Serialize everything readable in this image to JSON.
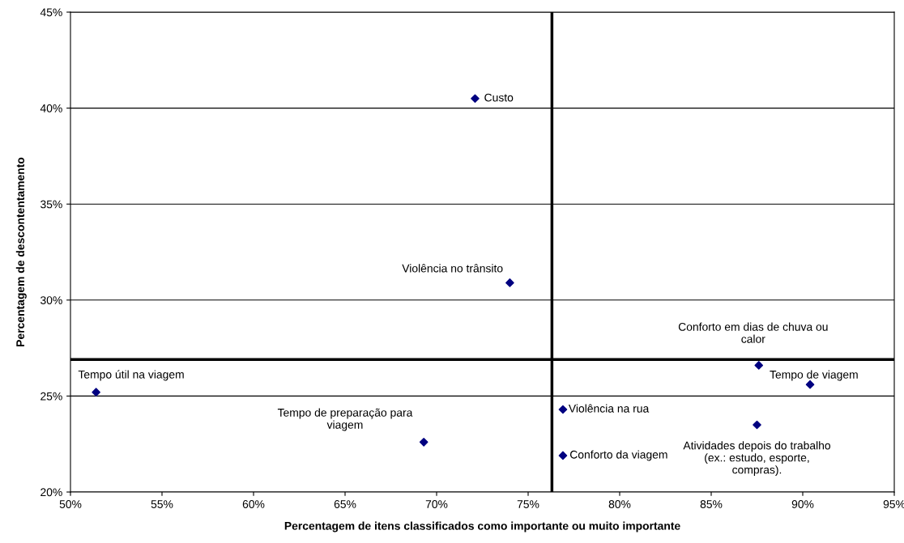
{
  "chart_data": {
    "type": "scatter",
    "xlabel": "Percentagem de itens classificados como importante ou muito importante",
    "ylabel": "Percentagem de descontentamento",
    "series": [
      {
        "color": "#000080",
        "x": [
          72.1,
          74.0,
          51.4,
          69.3,
          76.9,
          76.9,
          87.6,
          90.4,
          87.5
        ],
        "values": [
          40.5,
          30.9,
          25.2,
          22.6,
          24.3,
          21.9,
          26.6,
          25.6,
          23.5
        ]
      }
    ],
    "marker": "diamond",
    "annotations": [
      {
        "text": "Custo",
        "x": 72.1,
        "y": 40.5
      },
      {
        "text": "Violência no trânsito",
        "x": 74.0,
        "y": 30.9
      },
      {
        "text": "Tempo útil na viagem",
        "x": 51.4,
        "y": 25.2
      },
      {
        "text": "Tempo de preparação para\nviagem",
        "x": 69.3,
        "y": 22.6
      },
      {
        "text": "Violência na rua",
        "x": 76.9,
        "y": 24.3
      },
      {
        "text": "Conforto da viagem",
        "x": 76.9,
        "y": 21.9
      },
      {
        "text": "Conforto em dias de chuva ou\ncalor",
        "x": 87.6,
        "y": 26.6
      },
      {
        "text": "Tempo de viagem",
        "x": 90.4,
        "y": 25.6
      },
      {
        "text": "Atividades depois do trabalho\n(ex.: estudo, esporte,\ncompras).",
        "x": 87.5,
        "y": 23.5
      }
    ],
    "ref_lines": [
      {
        "axis": "x",
        "value": 76.3,
        "color": "#000000"
      },
      {
        "axis": "y",
        "value": 26.9,
        "color": "#000000"
      }
    ],
    "xlim": [
      50,
      95
    ],
    "xticks": [
      {
        "value": 50,
        "label": "50%"
      },
      {
        "value": 55,
        "label": "55%"
      },
      {
        "value": 60,
        "label": "60%"
      },
      {
        "value": 65,
        "label": "65%"
      },
      {
        "value": 70,
        "label": "70%"
      },
      {
        "value": 75,
        "label": "75%"
      },
      {
        "value": 80,
        "label": "80%"
      },
      {
        "value": 85,
        "label": "85%"
      },
      {
        "value": 90,
        "label": "90%"
      },
      {
        "value": 95,
        "label": "95%"
      }
    ],
    "ylim": [
      20,
      45
    ],
    "yticks": [
      {
        "value": 20,
        "label": "20%"
      },
      {
        "value": 25,
        "label": "25%"
      },
      {
        "value": 30,
        "label": "30%"
      },
      {
        "value": 35,
        "label": "35%"
      },
      {
        "value": 40,
        "label": "40%"
      },
      {
        "value": 45,
        "label": "45%"
      }
    ],
    "grid": "y"
  }
}
